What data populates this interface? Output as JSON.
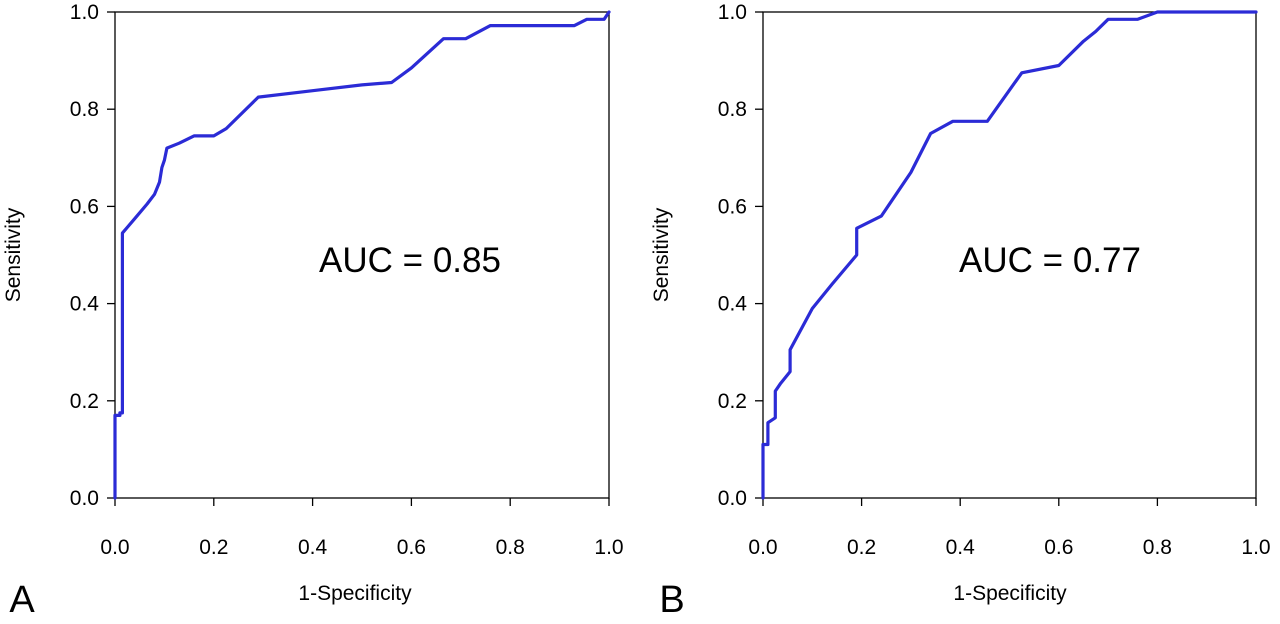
{
  "figure": {
    "panels": [
      {
        "panel_label": "A",
        "annotation": "AUC = 0.85",
        "xlabel": "1-Specificity",
        "ylabel": "Sensitivity"
      },
      {
        "panel_label": "B",
        "annotation": "AUC = 0.77",
        "xlabel": "1-Specificity",
        "ylabel": "Sensitivity"
      }
    ]
  },
  "chart_data": [
    {
      "type": "line",
      "title": "",
      "xlabel": "1-Specificity",
      "ylabel": "Sensitivity",
      "xlim": [
        0,
        1
      ],
      "ylim": [
        0,
        1
      ],
      "xticks": [
        "0.0",
        "0.2",
        "0.4",
        "0.6",
        "0.8",
        "1.0"
      ],
      "yticks": [
        "0.0",
        "0.2",
        "0.4",
        "0.6",
        "0.8",
        "1.0"
      ],
      "grid": false,
      "line_color": "#2b2bd6",
      "annotation": "AUC = 0.85",
      "panel_label": "A",
      "series": [
        {
          "x": [
            0.0,
            0.0,
            0.01,
            0.01,
            0.015,
            0.015,
            0.04,
            0.065,
            0.08,
            0.09,
            0.095,
            0.1,
            0.105,
            0.13,
            0.16,
            0.2,
            0.225,
            0.29,
            0.4,
            0.5,
            0.56,
            0.6,
            0.665,
            0.71,
            0.76,
            0.85,
            0.93,
            0.955,
            0.99,
            1.0
          ],
          "y": [
            0.0,
            0.17,
            0.17,
            0.175,
            0.175,
            0.545,
            0.575,
            0.605,
            0.625,
            0.65,
            0.68,
            0.695,
            0.72,
            0.73,
            0.745,
            0.745,
            0.76,
            0.825,
            0.838,
            0.85,
            0.855,
            0.885,
            0.945,
            0.945,
            0.972,
            0.972,
            0.972,
            0.985,
            0.985,
            1.0
          ]
        }
      ]
    },
    {
      "type": "line",
      "title": "",
      "xlabel": "1-Specificity",
      "ylabel": "Sensitivity",
      "xlim": [
        0,
        1
      ],
      "ylim": [
        0,
        1
      ],
      "xticks": [
        "0.0",
        "0.2",
        "0.4",
        "0.6",
        "0.8",
        "1.0"
      ],
      "yticks": [
        "0.0",
        "0.2",
        "0.4",
        "0.6",
        "0.8",
        "1.0"
      ],
      "grid": false,
      "line_color": "#2b2bd6",
      "annotation": "AUC = 0.77",
      "panel_label": "B",
      "series": [
        {
          "x": [
            0.0,
            0.0,
            0.01,
            0.01,
            0.025,
            0.025,
            0.035,
            0.055,
            0.055,
            0.1,
            0.14,
            0.19,
            0.19,
            0.24,
            0.3,
            0.34,
            0.385,
            0.455,
            0.525,
            0.6,
            0.65,
            0.675,
            0.7,
            0.76,
            0.8,
            1.0
          ],
          "y": [
            0.0,
            0.11,
            0.11,
            0.155,
            0.165,
            0.22,
            0.235,
            0.26,
            0.305,
            0.39,
            0.44,
            0.5,
            0.555,
            0.58,
            0.67,
            0.75,
            0.775,
            0.775,
            0.875,
            0.89,
            0.94,
            0.96,
            0.985,
            0.985,
            1.0,
            1.0
          ]
        }
      ]
    }
  ]
}
